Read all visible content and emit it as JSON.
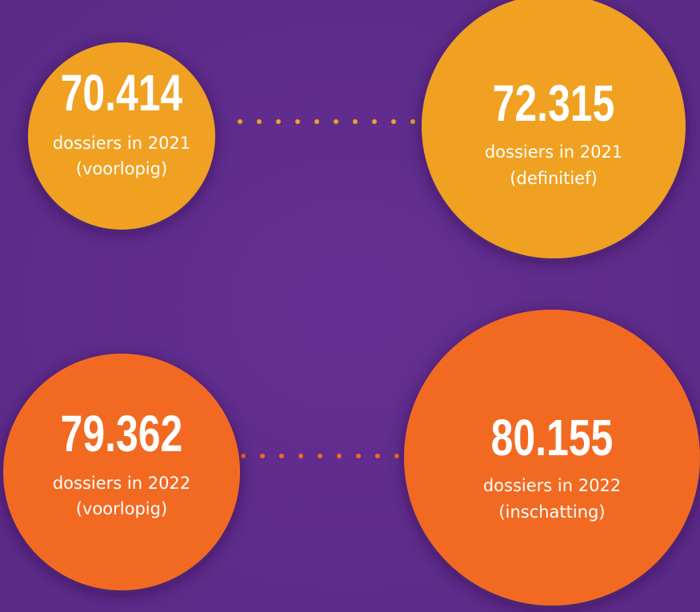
{
  "items": [
    {
      "number": "70.414",
      "line1": "dossiers in 2021",
      "line2": "(voorlopig)"
    },
    {
      "number": "72.315",
      "line1": "dossiers in 2021",
      "line2": "(definitief)"
    },
    {
      "number": "79.362",
      "line1": "dossiers in 2022",
      "line2": "(voorlopig)"
    },
    {
      "number": "80.155",
      "line1": "dossiers in 2022",
      "line2": "(inschatting)"
    }
  ]
}
